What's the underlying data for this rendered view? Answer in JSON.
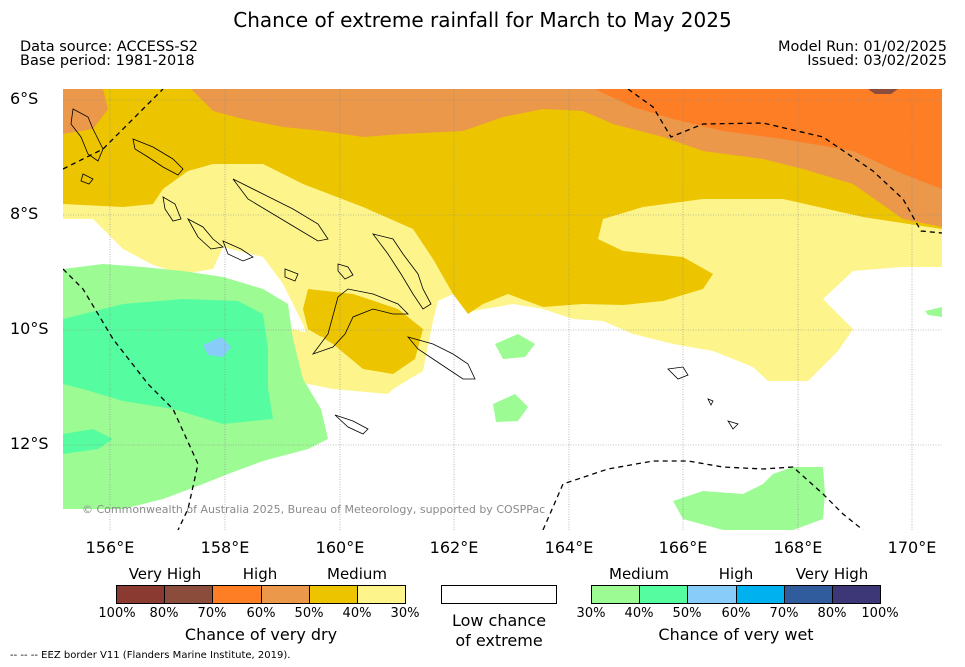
{
  "title": "Chance of extreme rainfall for March to May 2025",
  "meta": {
    "data_source": "Data source: ACCESS-S2",
    "base_period": "Base period: 1981-2018",
    "model_run": "Model Run: 01/02/2025",
    "issued": "Issued: 03/02/2025"
  },
  "axes": {
    "lat_labels": [
      "6°S",
      "8°S",
      "10°S",
      "12°S"
    ],
    "lon_labels": [
      "156°E",
      "158°E",
      "160°E",
      "162°E",
      "164°E",
      "166°E",
      "168°E",
      "170°E"
    ]
  },
  "copyright": "© Commonwealth of Australia 2025, Bureau of Meteorology, supported by COSPPac",
  "legend": {
    "dry": {
      "levels": [
        "Very High",
        "High",
        "Medium"
      ],
      "ticks": [
        "100%",
        "80%",
        "70%",
        "60%",
        "50%",
        "40%",
        "30%"
      ],
      "subtitle": "Chance of very dry",
      "colors": [
        "#8b3a32",
        "#8b4c3c",
        "#fd7e25",
        "#eb984a",
        "#ecc500",
        "#fdf58c"
      ]
    },
    "low": {
      "line1": "Low chance",
      "line2": "of extreme",
      "color": "#ffffff"
    },
    "wet": {
      "levels": [
        "Medium",
        "High",
        "Very High"
      ],
      "ticks": [
        "30%",
        "40%",
        "50%",
        "60%",
        "70%",
        "80%",
        "100%"
      ],
      "subtitle": "Chance of very wet",
      "colors": [
        "#9cfb93",
        "#56fda0",
        "#88cdf9",
        "#00b1ef",
        "#305c9e",
        "#3d3777"
      ]
    }
  },
  "footnote": "--  --  -- EEZ border V11 (Flanders Marine Institute, 2019)."
}
